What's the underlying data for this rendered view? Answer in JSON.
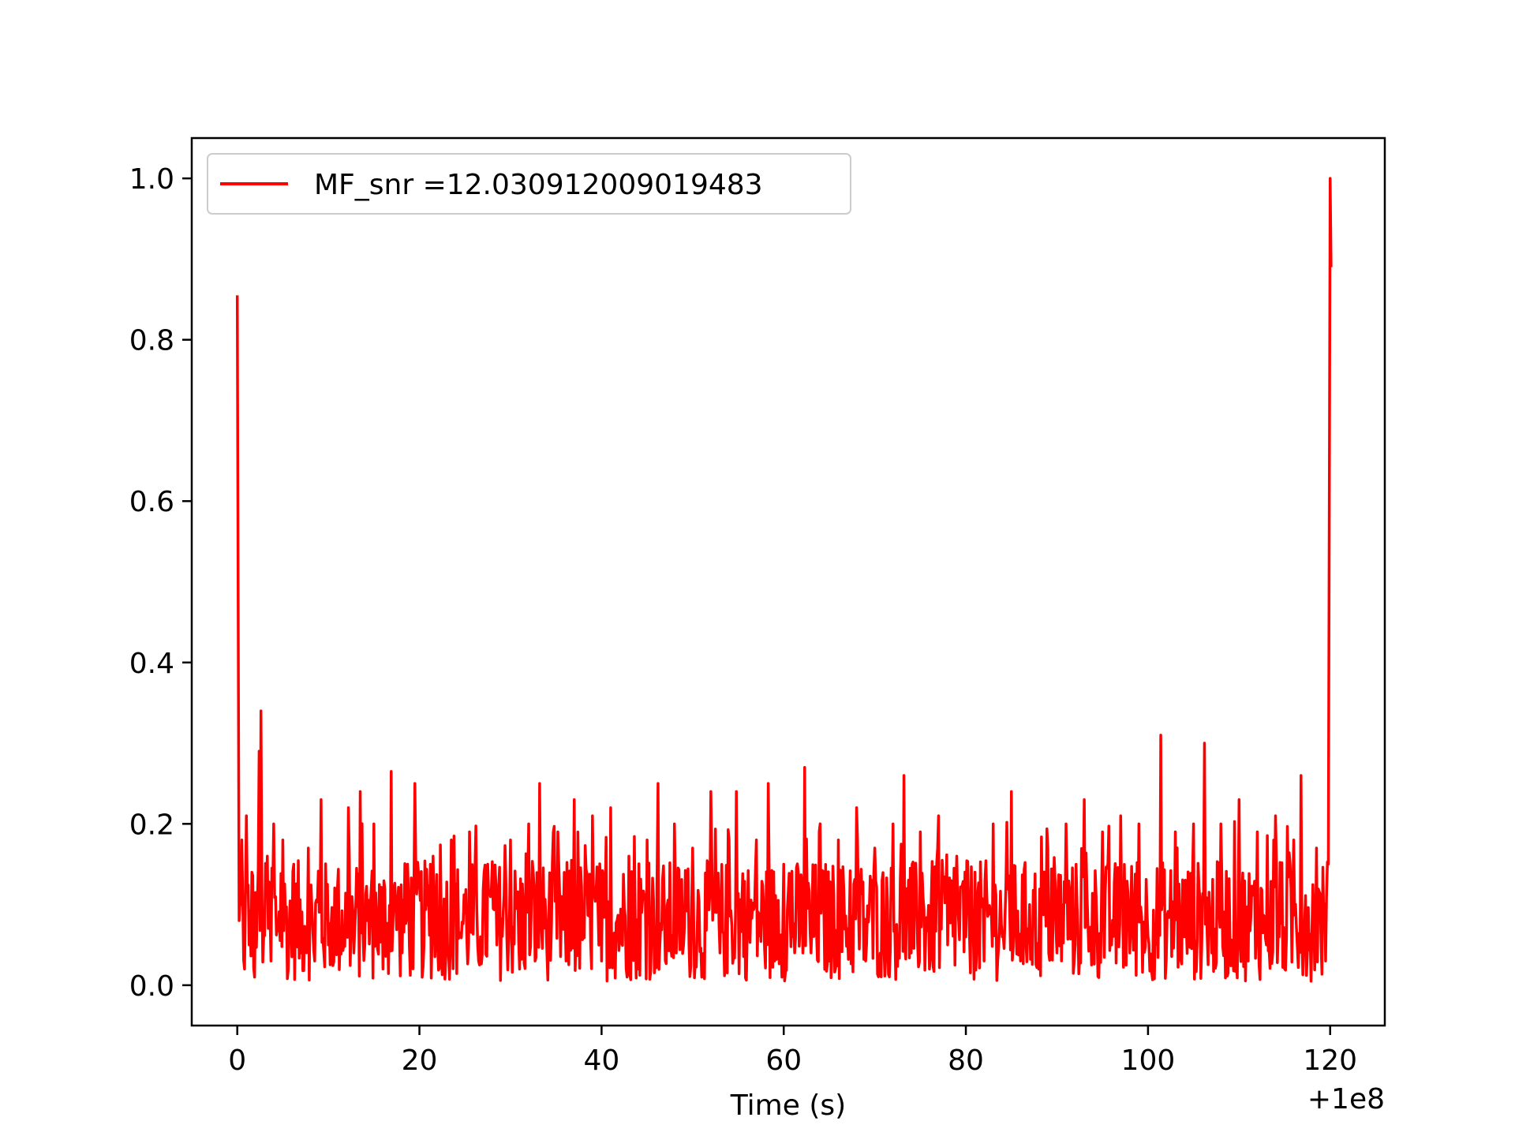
{
  "chart_data": {
    "type": "line",
    "title": "",
    "xlabel": "Time (s)",
    "ylabel": "",
    "x_offset_label": "+1e8",
    "xlim": [
      -5,
      126
    ],
    "ylim": [
      -0.05,
      1.05
    ],
    "x_ticks": [
      0,
      20,
      40,
      60,
      80,
      100,
      120
    ],
    "x_tick_labels": [
      "0",
      "20",
      "40",
      "60",
      "80",
      "100",
      "120"
    ],
    "y_ticks": [
      0.0,
      0.2,
      0.4,
      0.6,
      0.8,
      1.0
    ],
    "y_tick_labels": [
      "0.0",
      "0.2",
      "0.4",
      "0.6",
      "0.8",
      "1.0"
    ],
    "grid": false,
    "legend_position": "top-left",
    "series": [
      {
        "name": "MF_snr =12.030912009019483",
        "color": "#ff0000",
        "description_of_shape": "noisy signal between ~0.0 and ~0.25 with spikes",
        "x_start": 0,
        "x_end": 120,
        "peaks": [
          {
            "x": 0.0,
            "y": 0.855
          },
          {
            "x": 2.6,
            "y": 0.34
          },
          {
            "x": 2.4,
            "y": 0.29
          },
          {
            "x": 16.9,
            "y": 0.265
          },
          {
            "x": 19.5,
            "y": 0.25
          },
          {
            "x": 62.3,
            "y": 0.27
          },
          {
            "x": 73.2,
            "y": 0.26
          },
          {
            "x": 101.4,
            "y": 0.31
          },
          {
            "x": 106.2,
            "y": 0.3
          },
          {
            "x": 120.0,
            "y": 1.0
          }
        ],
        "values_sample": [
          [
            0.0,
            0.855
          ],
          [
            0.2,
            0.08
          ],
          [
            0.5,
            0.18
          ],
          [
            0.8,
            0.02
          ],
          [
            1.0,
            0.21
          ],
          [
            1.3,
            0.05
          ],
          [
            1.6,
            0.14
          ],
          [
            1.9,
            0.01
          ],
          [
            2.2,
            0.1
          ],
          [
            2.4,
            0.29
          ],
          [
            2.6,
            0.34
          ],
          [
            2.9,
            0.06
          ],
          [
            3.3,
            0.16
          ],
          [
            3.7,
            0.03
          ],
          [
            4.0,
            0.2
          ],
          [
            4.4,
            0.07
          ],
          [
            5.0,
            0.18
          ],
          [
            5.6,
            0.02
          ],
          [
            6.2,
            0.15
          ],
          [
            7.0,
            0.04
          ],
          [
            7.8,
            0.17
          ],
          [
            8.5,
            0.03
          ],
          [
            9.2,
            0.23
          ],
          [
            10.0,
            0.05
          ],
          [
            11.0,
            0.12
          ],
          [
            12.2,
            0.22
          ],
          [
            12.8,
            0.04
          ],
          [
            13.5,
            0.24
          ],
          [
            14.3,
            0.08
          ],
          [
            15.0,
            0.2
          ],
          [
            16.0,
            0.02
          ],
          [
            16.9,
            0.265
          ],
          [
            17.8,
            0.07
          ],
          [
            18.7,
            0.15
          ],
          [
            19.5,
            0.25
          ],
          [
            20.5,
            0.05
          ],
          [
            21.5,
            0.16
          ],
          [
            22.6,
            0.02
          ],
          [
            23.5,
            0.18
          ],
          [
            24.5,
            0.06
          ],
          [
            25.5,
            0.19
          ],
          [
            26.5,
            0.03
          ],
          [
            27.5,
            0.15
          ],
          [
            28.5,
            0.05
          ],
          [
            30.0,
            0.18
          ],
          [
            31.0,
            0.02
          ],
          [
            32.0,
            0.2
          ],
          [
            33.2,
            0.25
          ],
          [
            34.0,
            0.04
          ],
          [
            35.2,
            0.19
          ],
          [
            36.1,
            0.03
          ],
          [
            37.0,
            0.23
          ],
          [
            38.0,
            0.06
          ],
          [
            39.0,
            0.21
          ],
          [
            40.0,
            0.03
          ],
          [
            41.0,
            0.22
          ],
          [
            42.0,
            0.06
          ],
          [
            43.0,
            0.16
          ],
          [
            44.0,
            0.02
          ],
          [
            45.0,
            0.18
          ],
          [
            46.2,
            0.25
          ],
          [
            47.0,
            0.03
          ],
          [
            48.0,
            0.2
          ],
          [
            49.0,
            0.05
          ],
          [
            50.0,
            0.17
          ],
          [
            51.0,
            0.01
          ],
          [
            52.0,
            0.24
          ],
          [
            53.0,
            0.04
          ],
          [
            54.0,
            0.18
          ],
          [
            54.8,
            0.24
          ],
          [
            56.0,
            0.07
          ],
          [
            57.0,
            0.18
          ],
          [
            58.3,
            0.25
          ],
          [
            59.0,
            0.03
          ],
          [
            60.0,
            0.15
          ],
          [
            61.0,
            0.06
          ],
          [
            62.3,
            0.27
          ],
          [
            63.0,
            0.04
          ],
          [
            64.0,
            0.2
          ],
          [
            65.0,
            0.03
          ],
          [
            66.0,
            0.18
          ],
          [
            67.0,
            0.07
          ],
          [
            68.0,
            0.22
          ],
          [
            69.0,
            0.03
          ],
          [
            70.0,
            0.17
          ],
          [
            71.0,
            0.05
          ],
          [
            72.0,
            0.2
          ],
          [
            73.2,
            0.26
          ],
          [
            74.0,
            0.04
          ],
          [
            75.0,
            0.19
          ],
          [
            76.0,
            0.02
          ],
          [
            77.0,
            0.21
          ],
          [
            78.0,
            0.05
          ],
          [
            79.0,
            0.16
          ],
          [
            80.0,
            0.06
          ],
          [
            81.0,
            0.14
          ],
          [
            82.0,
            0.03
          ],
          [
            83.0,
            0.2
          ],
          [
            84.0,
            0.06
          ],
          [
            85.0,
            0.24
          ],
          [
            86.0,
            0.03
          ],
          [
            87.0,
            0.1
          ],
          [
            88.0,
            0.02
          ],
          [
            89.0,
            0.17
          ],
          [
            90.0,
            0.04
          ],
          [
            91.0,
            0.2
          ],
          [
            92.0,
            0.05
          ],
          [
            93.0,
            0.23
          ],
          [
            94.0,
            0.03
          ],
          [
            95.0,
            0.19
          ],
          [
            96.0,
            0.05
          ],
          [
            97.0,
            0.21
          ],
          [
            98.0,
            0.04
          ],
          [
            99.0,
            0.2
          ],
          [
            100.0,
            0.06
          ],
          [
            101.4,
            0.31
          ],
          [
            102.0,
            0.03
          ],
          [
            103.0,
            0.19
          ],
          [
            104.0,
            0.06
          ],
          [
            105.0,
            0.2
          ],
          [
            106.2,
            0.3
          ],
          [
            107.0,
            0.04
          ],
          [
            108.0,
            0.2
          ],
          [
            109.0,
            0.06
          ],
          [
            110.0,
            0.23
          ],
          [
            111.0,
            0.03
          ],
          [
            112.0,
            0.19
          ],
          [
            113.0,
            0.05
          ],
          [
            114.0,
            0.21
          ],
          [
            115.0,
            0.02
          ],
          [
            116.0,
            0.18
          ],
          [
            116.8,
            0.26
          ],
          [
            117.5,
            0.04
          ],
          [
            118.5,
            0.17
          ],
          [
            119.5,
            0.03
          ],
          [
            119.8,
            0.15
          ],
          [
            120.0,
            1.0
          ],
          [
            120.1,
            0.89
          ]
        ]
      }
    ]
  }
}
